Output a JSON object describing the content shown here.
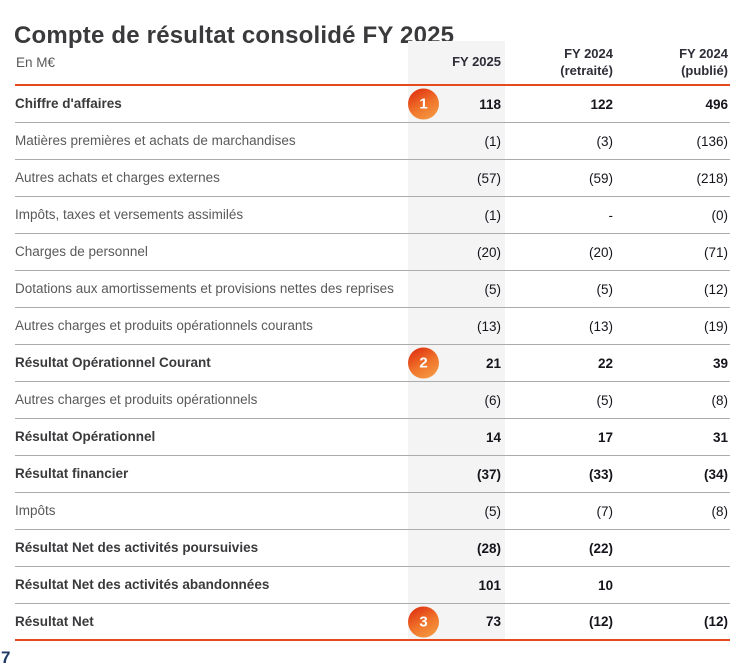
{
  "page": {
    "title": "Compte de résultat consolidé FY 2025",
    "page_number": "7"
  },
  "table": {
    "unit_label": "En M€",
    "columns": [
      {
        "line1": "FY 2025",
        "line2": ""
      },
      {
        "line1": "FY 2024",
        "line2": "(retraité)"
      },
      {
        "line1": "FY 2024",
        "line2": "(publié)"
      }
    ],
    "rows": [
      {
        "label": "Chiffre d'affaires",
        "bold": true,
        "badge": "1",
        "values": [
          "118",
          "122",
          "496"
        ]
      },
      {
        "label": "Matières premières et achats de marchandises",
        "bold": false,
        "badge": "",
        "values": [
          "(1)",
          "(3)",
          "(136)"
        ]
      },
      {
        "label": "Autres achats et charges externes",
        "bold": false,
        "badge": "",
        "values": [
          "(57)",
          "(59)",
          "(218)"
        ]
      },
      {
        "label": "Impôts, taxes et versements assimilés",
        "bold": false,
        "badge": "",
        "values": [
          "(1)",
          "-",
          "(0)"
        ]
      },
      {
        "label": "Charges de personnel",
        "bold": false,
        "badge": "",
        "values": [
          "(20)",
          "(20)",
          "(71)"
        ]
      },
      {
        "label": "Dotations aux amortissements et provisions nettes des reprises",
        "bold": false,
        "badge": "",
        "values": [
          "(5)",
          "(5)",
          "(12)"
        ]
      },
      {
        "label": "Autres charges et produits opérationnels courants",
        "bold": false,
        "badge": "",
        "values": [
          "(13)",
          "(13)",
          "(19)"
        ]
      },
      {
        "label": "Résultat Opérationnel Courant",
        "bold": true,
        "badge": "2",
        "values": [
          "21",
          "22",
          "39"
        ]
      },
      {
        "label": "Autres charges et produits opérationnels",
        "bold": false,
        "badge": "",
        "values": [
          "(6)",
          "(5)",
          "(8)"
        ]
      },
      {
        "label": "Résultat Opérationnel",
        "bold": true,
        "badge": "",
        "values": [
          "14",
          "17",
          "31"
        ]
      },
      {
        "label": "Résultat financier",
        "bold": true,
        "badge": "",
        "values": [
          "(37)",
          "(33)",
          "(34)"
        ]
      },
      {
        "label": "Impôts",
        "bold": false,
        "badge": "",
        "values": [
          "(5)",
          "(7)",
          "(8)"
        ]
      },
      {
        "label": "Résultat Net des activités poursuivies",
        "bold": true,
        "badge": "",
        "values": [
          "(28)",
          "(22)",
          ""
        ]
      },
      {
        "label": "Résultat Net des activités abandonnées",
        "bold": true,
        "badge": "",
        "values": [
          "101",
          "10",
          ""
        ]
      },
      {
        "label": "Résultat Net",
        "bold": true,
        "badge": "3",
        "values": [
          "73",
          "(12)",
          "(12)"
        ]
      }
    ]
  },
  "colors": {
    "accent_orange": "#E5491C",
    "badge_gradient_start": "#E23B15",
    "badge_gradient_end": "#F5A04A",
    "separator_gray": "#ABABAB",
    "column_highlight_gray": "#F4F4F4",
    "title_text": "#3A3A3C",
    "label_text": "#595959",
    "number_text": "#15151C",
    "header_text": "#2E2E38",
    "page_number_blue": "#1F3864"
  }
}
